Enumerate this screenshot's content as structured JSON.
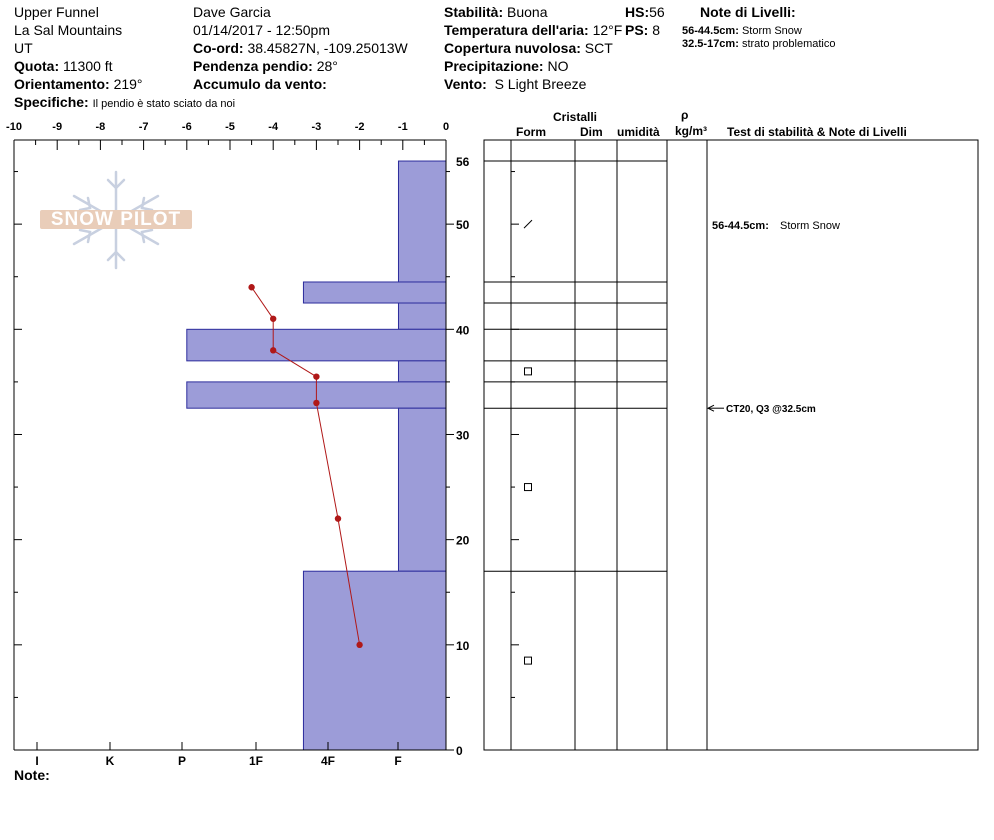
{
  "header": {
    "location": "Upper Funnel",
    "range": "La Sal Mountains",
    "state": "UT",
    "elevation_label": "Quota:",
    "elevation": "11300 ft",
    "aspect_label": "Orientamento:",
    "aspect": "219°",
    "specifics_label": "Specifiche:",
    "specifics": "Il pendio è stato sciato da noi",
    "observer": "Dave Garcia",
    "datetime": "01/14/2017 - 12:50pm",
    "coord_label": "Co-ord:",
    "coord": "38.45827N, -109.25013W",
    "slope_label": "Pendenza pendio:",
    "slope": "28°",
    "wind_load_label": "Accumulo da vento:",
    "wind_load": "",
    "stability_label": "Stabilità:",
    "stability": "Buona",
    "air_temp_label": "Temperatura dell'aria:",
    "air_temp": "12°F",
    "sky_label": "Copertura nuvolosa:",
    "sky": "SCT",
    "precip_label": "Precipitazione:",
    "precip": "NO",
    "wind_label": "Vento:",
    "wind": "S Light Breeze",
    "hs_label": "HS:",
    "hs": "56",
    "ps_label": "PS:",
    "ps": "8",
    "layer_notes_title": "Note di Livelli:",
    "layer_notes": [
      {
        "range": "56-44.5cm:",
        "text": "Storm Snow"
      },
      {
        "range": "32.5-17cm:",
        "text": "strato problematico"
      }
    ]
  },
  "logo_text": "SNOW PILOT",
  "table": {
    "crystals_header": "Cristalli",
    "form_header": "Form",
    "size_header": "Dim",
    "moisture_header": "umidità",
    "density_symbol": "ρ",
    "density_unit": "kg/m³",
    "tests_header": "Test di stabilità & Note di Livelli",
    "layer_note": {
      "range": "56-44.5cm:",
      "text": "Storm Snow"
    },
    "test_result": "CT20, Q3 @32.5cm"
  },
  "notes_label": "Note:",
  "colors": {
    "hardness_fill": "#9c9cd8",
    "hardness_stroke": "#2c2c9c",
    "temp_line": "#b01818"
  },
  "chart_data": {
    "type": "bar",
    "temp_axis": {
      "min": -10,
      "max": 0,
      "ticks": [
        "-10",
        "-9",
        "-8",
        "-7",
        "-6",
        "-5",
        "-4",
        "-3",
        "-2",
        "-1",
        "0"
      ]
    },
    "depth_axis": {
      "min": 0,
      "max": 58,
      "ticks": [
        "0",
        "10",
        "20",
        "30",
        "40",
        "50",
        "56"
      ]
    },
    "hardness_ticks": [
      "I",
      "K",
      "P",
      "1F",
      "4F",
      "F"
    ],
    "hardness_profile": [
      {
        "top": 56,
        "bottom": 44.5,
        "temp_scale_extent": -1.1
      },
      {
        "top": 44.5,
        "bottom": 42.5,
        "temp_scale_extent": -3.3
      },
      {
        "top": 42.5,
        "bottom": 40,
        "temp_scale_extent": -1.1
      },
      {
        "top": 40,
        "bottom": 37,
        "temp_scale_extent": -6.0
      },
      {
        "top": 37,
        "bottom": 35,
        "temp_scale_extent": -1.1
      },
      {
        "top": 35,
        "bottom": 32.5,
        "temp_scale_extent": -6.0
      },
      {
        "top": 32.5,
        "bottom": 17,
        "temp_scale_extent": -1.1
      },
      {
        "top": 17,
        "bottom": 0,
        "temp_scale_extent": -3.3
      }
    ],
    "temperature_profile": [
      {
        "depth": 44,
        "temp": -4.5
      },
      {
        "depth": 41,
        "temp": -4.0
      },
      {
        "depth": 38,
        "temp": -4.0
      },
      {
        "depth": 35.5,
        "temp": -3.0
      },
      {
        "depth": 33,
        "temp": -3.0
      },
      {
        "depth": 22,
        "temp": -2.5
      },
      {
        "depth": 10,
        "temp": -2.0
      }
    ],
    "layer_lines": [
      56,
      44.5,
      42.5,
      40,
      37,
      35,
      32.5,
      17
    ],
    "grain_symbols": [
      {
        "depth": 50,
        "symbol": "slash"
      },
      {
        "depth": 36,
        "symbol": "square"
      },
      {
        "depth": 25,
        "symbol": "square"
      },
      {
        "depth": 8.5,
        "symbol": "square"
      }
    ]
  }
}
